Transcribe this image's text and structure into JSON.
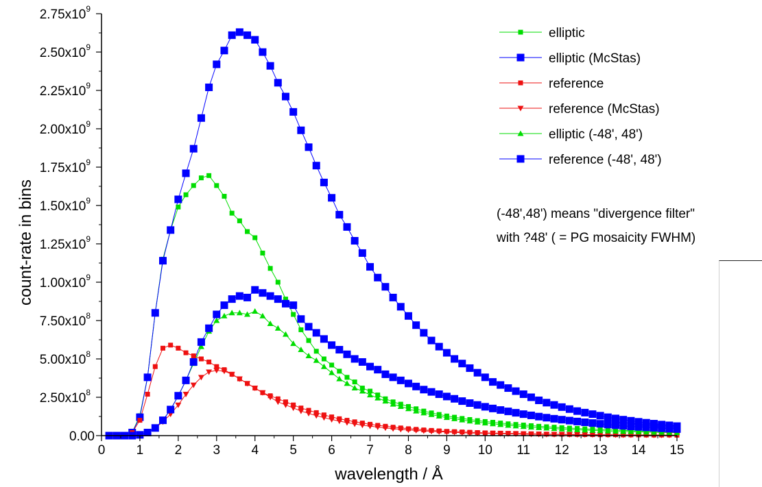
{
  "chart_data": {
    "type": "scatter",
    "xlabel": "wavelength / Å",
    "ylabel": "count-rate in bins",
    "xlim": [
      0,
      15
    ],
    "ylim": [
      0,
      2750000000.0
    ],
    "xticks": [
      "0",
      "1",
      "2",
      "3",
      "4",
      "5",
      "6",
      "7",
      "8",
      "9",
      "10",
      "11",
      "12",
      "13",
      "14",
      "15"
    ],
    "yticks": [
      {
        "value": 0,
        "label": "0.00",
        "exp": ""
      },
      {
        "value": 250000000.0,
        "label": "2.50x10",
        "exp": "8"
      },
      {
        "value": 500000000.0,
        "label": "5.00x10",
        "exp": "8"
      },
      {
        "value": 750000000.0,
        "label": "7.50x10",
        "exp": "8"
      },
      {
        "value": 1000000000.0,
        "label": "1.00x10",
        "exp": "9"
      },
      {
        "value": 1250000000.0,
        "label": "1.25x10",
        "exp": "9"
      },
      {
        "value": 1500000000.0,
        "label": "1.50x10",
        "exp": "9"
      },
      {
        "value": 1750000000.0,
        "label": "1.75x10",
        "exp": "9"
      },
      {
        "value": 2000000000.0,
        "label": "2.00x10",
        "exp": "9"
      },
      {
        "value": 2250000000.0,
        "label": "2.25x10",
        "exp": "9"
      },
      {
        "value": 2500000000.0,
        "label": "2.50x10",
        "exp": "9"
      },
      {
        "value": 2750000000.0,
        "label": "2.75x10",
        "exp": "9"
      }
    ],
    "grid": false,
    "legend_position": "top-right",
    "series": [
      {
        "name": "elliptic",
        "color": "#00dd00",
        "marker": "square-small",
        "x": [
          0.2,
          0.4,
          0.6,
          0.8,
          1.0,
          1.2,
          1.4,
          1.6,
          1.8,
          2.0,
          2.2,
          2.4,
          2.6,
          2.8,
          3.0,
          3.2,
          3.4,
          3.6,
          3.8,
          4.0,
          4.2,
          4.4,
          4.6,
          4.8,
          5.0,
          5.2,
          5.4,
          5.6,
          5.8,
          6.0,
          6.2,
          6.4,
          6.6,
          6.8,
          7.0,
          7.2,
          7.4,
          7.6,
          7.8,
          8.0,
          8.2,
          8.4,
          8.6,
          8.8,
          9.0,
          9.2,
          9.4,
          9.6,
          9.8,
          10.0,
          10.2,
          10.4,
          10.6,
          10.8,
          11.0,
          11.2,
          11.4,
          11.6,
          11.8,
          12.0,
          12.2,
          12.4,
          12.6,
          12.8,
          13.0,
          13.2,
          13.4,
          13.6,
          13.8,
          14.0,
          14.2,
          14.4,
          14.6,
          14.8,
          15.0
        ],
        "y": [
          0,
          0,
          0,
          20000000.0,
          130000000.0,
          380000000.0,
          800000000.0,
          1150000000.0,
          1340000000.0,
          1490000000.0,
          1570000000.0,
          1630000000.0,
          1680000000.0,
          1695000000.0,
          1630000000.0,
          1560000000.0,
          1450000000.0,
          1400000000.0,
          1330000000.0,
          1290000000.0,
          1190000000.0,
          1090000000.0,
          1000000000.0,
          890000000.0,
          790000000.0,
          690000000.0,
          620000000.0,
          550000000.0,
          500000000.0,
          460000000.0,
          420000000.0,
          380000000.0,
          350000000.0,
          310000000.0,
          290000000.0,
          265000000.0,
          240000000.0,
          220000000.0,
          205000000.0,
          190000000.0,
          175000000.0,
          160000000.0,
          148000000.0,
          138000000.0,
          128000000.0,
          120000000.0,
          112000000.0,
          105000000.0,
          98000000.0,
          92000000.0,
          87000000.0,
          82000000.0,
          77000000.0,
          73000000.0,
          69000000.0,
          65000000.0,
          61000000.0,
          58000000.0,
          55000000.0,
          52000000.0,
          49000000.0,
          47000000.0,
          44000000.0,
          42000000.0,
          40000000.0,
          38000000.0,
          36000000.0,
          34000000.0,
          32000000.0,
          31000000.0,
          29000000.0,
          28000000.0,
          26000000.0,
          25000000.0,
          24000000.0
        ]
      },
      {
        "name": "elliptic (McStas)",
        "color": "#0000ff",
        "marker": "square-large",
        "x": [
          0.2,
          0.4,
          0.6,
          0.8,
          1.0,
          1.2,
          1.4,
          1.6,
          1.8,
          2.0,
          2.2,
          2.4,
          2.6,
          2.8,
          3.0,
          3.2,
          3.4,
          3.6,
          3.8,
          4.0,
          4.2,
          4.4,
          4.6,
          4.8,
          5.0,
          5.2,
          5.4,
          5.6,
          5.8,
          6.0,
          6.2,
          6.4,
          6.6,
          6.8,
          7.0,
          7.2,
          7.4,
          7.6,
          7.8,
          8.0,
          8.2,
          8.4,
          8.6,
          8.8,
          9.0,
          9.2,
          9.4,
          9.6,
          9.8,
          10.0,
          10.2,
          10.4,
          10.6,
          10.8,
          11.0,
          11.2,
          11.4,
          11.6,
          11.8,
          12.0,
          12.2,
          12.4,
          12.6,
          12.8,
          13.0,
          13.2,
          13.4,
          13.6,
          13.8,
          14.0,
          14.2,
          14.4,
          14.6,
          14.8,
          15.0
        ],
        "y": [
          0,
          0,
          0,
          20000000.0,
          120000000.0,
          380000000.0,
          800000000.0,
          1140000000.0,
          1340000000.0,
          1540000000.0,
          1710000000.0,
          1870000000.0,
          2070000000.0,
          2270000000.0,
          2420000000.0,
          2510000000.0,
          2610000000.0,
          2630000000.0,
          2610000000.0,
          2580000000.0,
          2500000000.0,
          2410000000.0,
          2300000000.0,
          2210000000.0,
          2110000000.0,
          1990000000.0,
          1880000000.0,
          1760000000.0,
          1650000000.0,
          1550000000.0,
          1440000000.0,
          1360000000.0,
          1270000000.0,
          1190000000.0,
          1100000000.0,
          1030000000.0,
          970000000.0,
          900000000.0,
          840000000.0,
          780000000.0,
          720000000.0,
          670000000.0,
          620000000.0,
          580000000.0,
          540000000.0,
          500000000.0,
          470000000.0,
          440000000.0,
          410000000.0,
          380000000.0,
          350000000.0,
          330000000.0,
          310000000.0,
          290000000.0,
          270000000.0,
          250000000.0,
          230000000.0,
          215000000.0,
          200000000.0,
          186000000.0,
          173000000.0,
          160000000.0,
          150000000.0,
          140000000.0,
          130000000.0,
          120000000.0,
          112000000.0,
          104000000.0,
          97000000.0,
          90000000.0,
          84000000.0,
          78000000.0,
          72000000.0,
          67000000.0,
          62000000.0
        ]
      },
      {
        "name": "reference",
        "color": "#ee1111",
        "marker": "square-small",
        "x": [
          0.2,
          0.4,
          0.6,
          0.8,
          1.0,
          1.2,
          1.4,
          1.6,
          1.8,
          2.0,
          2.2,
          2.4,
          2.6,
          2.8,
          3.0,
          3.2,
          3.4,
          3.6,
          3.8,
          4.0,
          4.2,
          4.4,
          4.6,
          4.8,
          5.0,
          5.2,
          5.4,
          5.6,
          5.8,
          6.0,
          6.2,
          6.4,
          6.6,
          6.8,
          7.0,
          7.2,
          7.4,
          7.6,
          7.8,
          8.0,
          8.2,
          8.4,
          8.6,
          8.8,
          9.0,
          9.2,
          9.4,
          9.6,
          9.8,
          10.0,
          10.2,
          10.4,
          10.6,
          10.8,
          11.0,
          11.2,
          11.4,
          11.6,
          11.8,
          12.0,
          12.2,
          12.4,
          12.6,
          12.8,
          13.0,
          13.2,
          13.4,
          13.6,
          13.8,
          14.0,
          14.2,
          14.4,
          14.6,
          14.8,
          15.0
        ],
        "y": [
          0,
          0,
          0,
          20000000.0,
          100000000.0,
          270000000.0,
          450000000.0,
          570000000.0,
          590000000.0,
          570000000.0,
          540000000.0,
          520000000.0,
          500000000.0,
          480000000.0,
          450000000.0,
          430000000.0,
          400000000.0,
          370000000.0,
          340000000.0,
          310000000.0,
          280000000.0,
          260000000.0,
          240000000.0,
          220000000.0,
          200000000.0,
          180000000.0,
          165000000.0,
          150000000.0,
          135000000.0,
          122000000.0,
          110000000.0,
          100000000.0,
          90000000.0,
          82000000.0,
          74000000.0,
          67000000.0,
          61000000.0,
          55000000.0,
          50000000.0,
          45000000.0,
          41000000.0,
          37000000.0,
          34000000.0,
          31000000.0,
          28000000.0,
          26000000.0,
          24000000.0,
          22000000.0,
          20000000.0,
          18000000.0,
          17000000.0,
          16000000.0,
          15000000.0,
          14000000.0,
          13000000.0,
          12000000.0,
          11000000.0,
          10000000.0,
          9000000.0,
          9000000.0,
          8000000.0,
          8000000.0,
          7000000.0,
          7000000.0,
          6000000.0,
          6000000.0,
          6000000.0,
          5000000.0,
          5000000.0,
          5000000.0,
          4000000.0,
          4000000.0,
          4000000.0,
          4000000.0,
          3000000.0
        ]
      },
      {
        "name": "reference  (McStas)",
        "color": "#ee1111",
        "marker": "triangle-down",
        "x": [
          0.2,
          0.4,
          0.6,
          0.8,
          1.0,
          1.2,
          1.4,
          1.6,
          1.8,
          2.0,
          2.2,
          2.4,
          2.6,
          2.8,
          3.0,
          3.2,
          3.4,
          3.6,
          3.8,
          4.0,
          4.2,
          4.4,
          4.6,
          4.8,
          5.0,
          5.2,
          5.4,
          5.6,
          5.8,
          6.0,
          6.2,
          6.4,
          6.6,
          6.8,
          7.0,
          7.2,
          7.4,
          7.6,
          7.8,
          8.0,
          8.2,
          8.4,
          8.6,
          8.8,
          9.0,
          9.2,
          9.4,
          9.6,
          9.8,
          10.0,
          10.2,
          10.4,
          10.6,
          10.8,
          11.0,
          11.2,
          11.4,
          11.6,
          11.8,
          12.0,
          12.2,
          12.4,
          12.6,
          12.8,
          13.0,
          13.2,
          13.4,
          13.6,
          13.8,
          14.0,
          14.2,
          14.4,
          14.6,
          14.8,
          15.0
        ],
        "y": [
          0,
          0,
          0,
          0,
          5000000.0,
          20000000.0,
          50000000.0,
          90000000.0,
          140000000.0,
          200000000.0,
          270000000.0,
          330000000.0,
          380000000.0,
          415000000.0,
          425000000.0,
          420000000.0,
          400000000.0,
          370000000.0,
          340000000.0,
          310000000.0,
          280000000.0,
          250000000.0,
          220000000.0,
          200000000.0,
          180000000.0,
          160000000.0,
          145000000.0,
          130000000.0,
          117000000.0,
          105000000.0,
          95000000.0,
          85000000.0,
          76000000.0,
          68000000.0,
          62000000.0,
          56000000.0,
          50000000.0,
          45000000.0,
          41000000.0,
          37000000.0,
          34000000.0,
          31000000.0,
          28000000.0,
          25000000.0,
          23000000.0,
          21000000.0,
          19000000.0,
          17000000.0,
          16000000.0,
          15000000.0,
          14000000.0,
          13000000.0,
          12000000.0,
          11000000.0,
          10000000.0,
          9000000.0,
          9000000.0,
          8000000.0,
          8000000.0,
          7000000.0,
          7000000.0,
          6000000.0,
          6000000.0,
          6000000.0,
          5000000.0,
          5000000.0,
          5000000.0,
          4000000.0,
          4000000.0,
          4000000.0,
          4000000.0,
          3000000.0,
          3000000.0,
          3000000.0,
          3000000.0
        ]
      },
      {
        "name": "elliptic (-48', 48')",
        "color": "#00dd00",
        "marker": "triangle-up",
        "x": [
          0.2,
          0.4,
          0.6,
          0.8,
          1.0,
          1.2,
          1.4,
          1.6,
          1.8,
          2.0,
          2.2,
          2.4,
          2.6,
          2.8,
          3.0,
          3.2,
          3.4,
          3.6,
          3.8,
          4.0,
          4.2,
          4.4,
          4.6,
          4.8,
          5.0,
          5.2,
          5.4,
          5.6,
          5.8,
          6.0,
          6.2,
          6.4,
          6.6,
          6.8,
          7.0,
          7.2,
          7.4,
          7.6,
          7.8,
          8.0,
          8.2,
          8.4,
          8.6,
          8.8,
          9.0,
          9.2,
          9.4,
          9.6,
          9.8,
          10.0,
          10.2,
          10.4,
          10.6,
          10.8,
          11.0,
          11.2,
          11.4,
          11.6,
          11.8,
          12.0,
          12.2,
          12.4,
          12.6,
          12.8,
          13.0,
          13.2,
          13.4,
          13.6,
          13.8,
          14.0,
          14.2,
          14.4,
          14.6,
          14.8,
          15.0
        ],
        "y": [
          0,
          0,
          0,
          0,
          5000000.0,
          20000000.0,
          50000000.0,
          100000000.0,
          170000000.0,
          260000000.0,
          360000000.0,
          470000000.0,
          580000000.0,
          680000000.0,
          750000000.0,
          780000000.0,
          800000000.0,
          800000000.0,
          790000000.0,
          810000000.0,
          780000000.0,
          730000000.0,
          700000000.0,
          660000000.0,
          600000000.0,
          560000000.0,
          520000000.0,
          490000000.0,
          450000000.0,
          410000000.0,
          370000000.0,
          340000000.0,
          310000000.0,
          290000000.0,
          265000000.0,
          245000000.0,
          225000000.0,
          205000000.0,
          190000000.0,
          175000000.0,
          160000000.0,
          148000000.0,
          137000000.0,
          127000000.0,
          118000000.0,
          110000000.0,
          102000000.0,
          95000000.0,
          88000000.0,
          82000000.0,
          77000000.0,
          72000000.0,
          67000000.0,
          63000000.0,
          59000000.0,
          55000000.0,
          52000000.0,
          49000000.0,
          46000000.0,
          43000000.0,
          41000000.0,
          38000000.0,
          36000000.0,
          34000000.0,
          32000000.0,
          30000000.0,
          29000000.0,
          27000000.0,
          26000000.0,
          24000000.0,
          23000000.0,
          22000000.0,
          21000000.0,
          20000000.0,
          19000000.0
        ]
      },
      {
        "name": "reference (-48', 48')",
        "color": "#0000ff",
        "marker": "square-large",
        "x": [
          0.2,
          0.4,
          0.6,
          0.8,
          1.0,
          1.2,
          1.4,
          1.6,
          1.8,
          2.0,
          2.2,
          2.4,
          2.6,
          2.8,
          3.0,
          3.2,
          3.4,
          3.6,
          3.8,
          4.0,
          4.2,
          4.4,
          4.6,
          4.8,
          5.0,
          5.2,
          5.4,
          5.6,
          5.8,
          6.0,
          6.2,
          6.4,
          6.6,
          6.8,
          7.0,
          7.2,
          7.4,
          7.6,
          7.8,
          8.0,
          8.2,
          8.4,
          8.6,
          8.8,
          9.0,
          9.2,
          9.4,
          9.6,
          9.8,
          10.0,
          10.2,
          10.4,
          10.6,
          10.8,
          11.0,
          11.2,
          11.4,
          11.6,
          11.8,
          12.0,
          12.2,
          12.4,
          12.6,
          12.8,
          13.0,
          13.2,
          13.4,
          13.6,
          13.8,
          14.0,
          14.2,
          14.4,
          14.6,
          14.8,
          15.0
        ],
        "y": [
          0,
          0,
          0,
          0,
          5000000.0,
          20000000.0,
          50000000.0,
          100000000.0,
          170000000.0,
          260000000.0,
          360000000.0,
          480000000.0,
          610000000.0,
          700000000.0,
          790000000.0,
          850000000.0,
          890000000.0,
          910000000.0,
          900000000.0,
          950000000.0,
          930000000.0,
          910000000.0,
          890000000.0,
          860000000.0,
          850000000.0,
          760000000.0,
          710000000.0,
          670000000.0,
          630000000.0,
          590000000.0,
          560000000.0,
          530000000.0,
          500000000.0,
          480000000.0,
          450000000.0,
          430000000.0,
          400000000.0,
          380000000.0,
          360000000.0,
          340000000.0,
          320000000.0,
          300000000.0,
          285000000.0,
          270000000.0,
          255000000.0,
          240000000.0,
          225000000.0,
          212000000.0,
          200000000.0,
          188000000.0,
          177000000.0,
          167000000.0,
          158000000.0,
          149000000.0,
          140000000.0,
          132000000.0,
          124000000.0,
          117000000.0,
          110000000.0,
          104000000.0,
          98000000.0,
          92000000.0,
          87000000.0,
          82000000.0,
          77000000.0,
          72000000.0,
          68000000.0,
          64000000.0,
          60000000.0,
          57000000.0,
          54000000.0,
          51000000.0,
          48000000.0,
          45000000.0,
          43000000.0
        ]
      }
    ],
    "note_lines": [
      "(-48',48') means \"divergence filter\"",
      "with ?48' ( = PG mosaicity FWHM)"
    ]
  }
}
